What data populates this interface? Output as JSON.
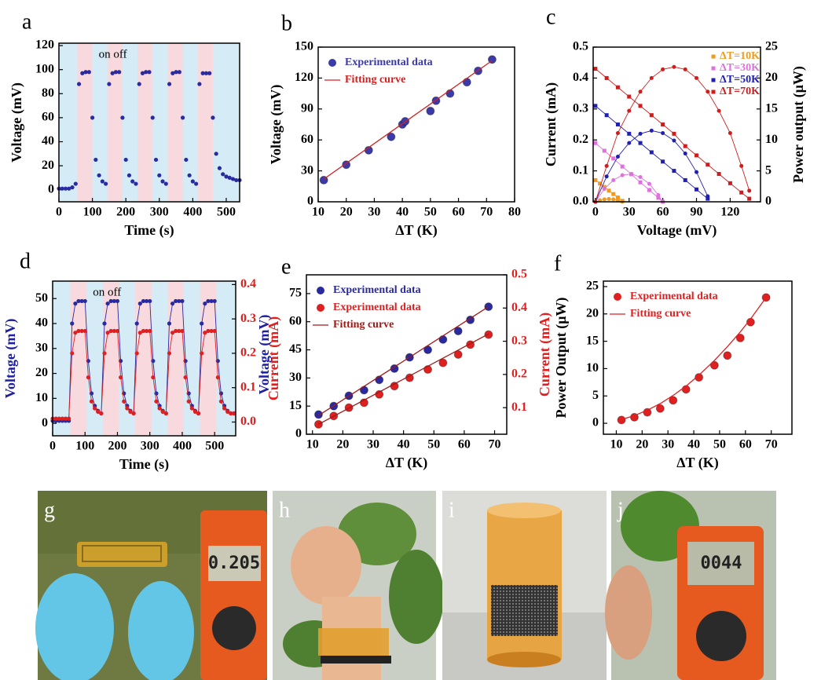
{
  "chart_data": [
    {
      "type": "scatter",
      "label": "a",
      "xlabel": "Time (s)",
      "ylabel": "Voltage (mV)",
      "annotation": "on off",
      "xlim": [
        0,
        540
      ],
      "xticks": [
        0,
        100,
        200,
        300,
        400,
        500
      ],
      "ylim": [
        -10,
        122
      ],
      "yticks": [
        0,
        20,
        40,
        60,
        80,
        100,
        120
      ],
      "band_colors": [
        "#d5ebf6",
        "#f8d9de"
      ],
      "on_periods": [
        [
          55,
          100
        ],
        [
          145,
          190
        ],
        [
          235,
          280
        ],
        [
          325,
          370
        ],
        [
          415,
          460
        ]
      ],
      "series": [
        {
          "color": "#2b2ba0",
          "marker": "circle",
          "size": 2.6,
          "line": false,
          "x": [
            0,
            10,
            20,
            30,
            40,
            50,
            60,
            70,
            80,
            90,
            100,
            110,
            120,
            130,
            140,
            150,
            160,
            170,
            180,
            190,
            200,
            210,
            220,
            230,
            240,
            250,
            260,
            270,
            280,
            290,
            300,
            310,
            320,
            330,
            340,
            350,
            360,
            370,
            380,
            390,
            400,
            410,
            420,
            430,
            440,
            450,
            460,
            470,
            480,
            490,
            500,
            510,
            520,
            530,
            540
          ],
          "values": [
            1,
            1,
            1,
            1,
            2,
            5,
            88,
            97,
            98,
            98,
            60,
            25,
            12,
            7,
            5,
            88,
            97,
            98,
            98,
            60,
            25,
            12,
            7,
            5,
            88,
            97,
            98,
            98,
            60,
            25,
            12,
            7,
            5,
            88,
            97,
            98,
            98,
            60,
            25,
            12,
            7,
            5,
            88,
            97,
            97,
            97,
            60,
            30,
            18,
            13,
            11,
            10,
            9,
            8,
            8
          ]
        }
      ]
    },
    {
      "type": "scatter",
      "label": "b",
      "xlabel": "ΔT (K)",
      "ylabel": "Voltage (mV)",
      "legend": "upper-left",
      "xlim": [
        10,
        80
      ],
      "xticks": [
        10,
        20,
        30,
        40,
        50,
        60,
        70,
        80
      ],
      "ylim": [
        0,
        150
      ],
      "yticks": [
        0,
        30,
        60,
        90,
        120,
        150
      ],
      "series": [
        {
          "name": "Experimental data",
          "color": "#3a3aa8",
          "marker": "circle",
          "size": 5,
          "line": false,
          "x": [
            12,
            20,
            28,
            36,
            40,
            41,
            50,
            52,
            57,
            63,
            67,
            72
          ],
          "values": [
            21,
            36,
            50,
            63,
            75,
            78,
            88,
            98,
            105,
            116,
            127,
            138
          ]
        },
        {
          "name": "Fitting curve",
          "color": "#d02020",
          "marker": "none",
          "line": true,
          "x": [
            12,
            72
          ],
          "values": [
            22,
            137
          ]
        }
      ]
    },
    {
      "type": "scatter",
      "label": "c",
      "xlabel": "Voltage (mV)",
      "ylabel": "Current (mA)",
      "y2label": "Power output (μW)",
      "legend": "upper-right",
      "xlim": [
        -2,
        147
      ],
      "xticks": [
        0,
        30,
        60,
        90,
        120
      ],
      "ylim": [
        0,
        0.5
      ],
      "yticks": [
        {
          "value": 0,
          "label": "0.0"
        },
        0.1,
        0.2,
        0.3,
        0.4,
        0.5
      ],
      "y2lim": [
        0,
        25
      ],
      "y2ticks": [
        0,
        5,
        10,
        15,
        20,
        25
      ],
      "series": [
        {
          "name": "ΔT=10K",
          "color": "#f09a20",
          "marker": "square",
          "size": 2.5,
          "line": true,
          "x": [
            0,
            4,
            8,
            12,
            16,
            20,
            24
          ],
          "values": [
            0.07,
            0.059,
            0.048,
            0.036,
            0.025,
            0.014,
            0.003
          ]
        },
        {
          "name": "ΔT=30K",
          "color": "#e070e0",
          "marker": "square",
          "size": 2.5,
          "line": true,
          "x": [
            0,
            8,
            16,
            24,
            32,
            40,
            48,
            56,
            60
          ],
          "values": [
            0.19,
            0.165,
            0.14,
            0.114,
            0.089,
            0.063,
            0.038,
            0.013,
            0
          ]
        },
        {
          "name": "ΔT=50K",
          "color": "#2020b0",
          "marker": "square",
          "size": 2.5,
          "line": true,
          "x": [
            0,
            10,
            20,
            30,
            40,
            50,
            60,
            70,
            80,
            90,
            100
          ],
          "values": [
            0.31,
            0.28,
            0.25,
            0.22,
            0.19,
            0.16,
            0.13,
            0.1,
            0.07,
            0.04,
            0.01
          ]
        },
        {
          "name": "ΔT=70K",
          "color": "#d01c1c",
          "marker": "square",
          "size": 2.5,
          "line": true,
          "x": [
            0,
            10,
            20,
            30,
            40,
            50,
            60,
            70,
            80,
            90,
            100,
            110,
            120,
            130,
            137
          ],
          "values": [
            0.43,
            0.4,
            0.37,
            0.34,
            0.31,
            0.28,
            0.25,
            0.22,
            0.18,
            0.15,
            0.12,
            0.09,
            0.06,
            0.03,
            0.01
          ]
        },
        {
          "color": "#f09a20",
          "marker": "circle",
          "size": 2.5,
          "line": true,
          "axis": "y2",
          "x": [
            0,
            4,
            8,
            12,
            16,
            20,
            24
          ],
          "values": [
            0,
            0.25,
            0.4,
            0.45,
            0.4,
            0.25,
            0
          ]
        },
        {
          "color": "#e070e0",
          "marker": "circle",
          "size": 2.5,
          "line": true,
          "axis": "y2",
          "x": [
            0,
            8,
            16,
            24,
            32,
            40,
            48,
            56,
            60
          ],
          "values": [
            0,
            2.1,
            3.5,
            4.3,
            4.5,
            4.0,
            2.9,
            1.1,
            0
          ]
        },
        {
          "color": "#2020b0",
          "marker": "circle",
          "size": 2.5,
          "line": true,
          "axis": "y2",
          "x": [
            0,
            10,
            20,
            30,
            40,
            50,
            60,
            70,
            80,
            90,
            100
          ],
          "values": [
            0,
            4.1,
            7.3,
            9.5,
            11,
            11.5,
            11.1,
            9.9,
            7.8,
            4.8,
            0.9
          ]
        },
        {
          "color": "#d01c1c",
          "marker": "circle",
          "size": 2.5,
          "line": true,
          "axis": "y2",
          "x": [
            0,
            10,
            20,
            30,
            40,
            50,
            60,
            70,
            80,
            90,
            100,
            110,
            120,
            130,
            137
          ],
          "values": [
            0,
            5.8,
            11.1,
            14.7,
            17.8,
            20,
            21.4,
            21.8,
            21.4,
            20,
            17.8,
            14.7,
            11.1,
            5.8,
            1.8
          ]
        }
      ]
    },
    {
      "type": "scatter",
      "label": "d",
      "xlabel": "Time (s)",
      "ylabel": "Voltage (mV)",
      "y2label": "Current (mA)",
      "annotation": "on off",
      "ylabel_color": "#1e1ea0",
      "y2label_color": "#e02020",
      "xlim": [
        0,
        565
      ],
      "xticks": [
        0,
        100,
        200,
        300,
        400,
        500
      ],
      "ylim": [
        -5,
        57
      ],
      "yticks": [
        0,
        10,
        20,
        30,
        40,
        50
      ],
      "y2lim": [
        -0.04,
        0.41
      ],
      "y2ticks": [
        {
          "value": 0,
          "label": "0.0"
        },
        0.1,
        0.2,
        0.3,
        0.4
      ],
      "band_colors": [
        "#d5ebf6",
        "#f8d9de"
      ],
      "on_periods": [
        [
          55,
          105
        ],
        [
          155,
          205
        ],
        [
          255,
          305
        ],
        [
          355,
          405
        ],
        [
          455,
          505
        ]
      ],
      "series": [
        {
          "color": "#2a2aa0",
          "marker": "circle",
          "size": 2.6,
          "line": true,
          "x": [
            0,
            10,
            20,
            30,
            40,
            50,
            60,
            70,
            80,
            90,
            100,
            110,
            120,
            130,
            140,
            150,
            160,
            170,
            180,
            190,
            200,
            210,
            220,
            230,
            240,
            250,
            260,
            270,
            280,
            290,
            300,
            310,
            320,
            330,
            340,
            350,
            360,
            370,
            380,
            390,
            400,
            410,
            420,
            430,
            440,
            450,
            460,
            470,
            480,
            490,
            500,
            510,
            520,
            530,
            540,
            550,
            560
          ],
          "values": [
            1,
            1,
            1,
            1,
            1,
            1,
            40,
            48,
            49,
            49,
            49,
            25,
            12,
            7,
            5,
            4,
            40,
            48,
            49,
            49,
            49,
            25,
            12,
            7,
            5,
            4,
            40,
            48,
            49,
            49,
            49,
            25,
            12,
            7,
            5,
            4,
            40,
            48,
            49,
            49,
            49,
            25,
            12,
            7,
            5,
            4,
            40,
            48,
            49,
            49,
            49,
            25,
            12,
            7,
            5,
            4,
            4
          ]
        },
        {
          "color": "#e02020",
          "marker": "circle",
          "size": 2.6,
          "line": true,
          "axis": "y2",
          "x": [
            0,
            10,
            20,
            30,
            40,
            50,
            60,
            70,
            80,
            90,
            100,
            110,
            120,
            130,
            140,
            150,
            160,
            170,
            180,
            190,
            200,
            210,
            220,
            230,
            240,
            250,
            260,
            270,
            280,
            290,
            300,
            310,
            320,
            330,
            340,
            350,
            360,
            370,
            380,
            390,
            400,
            410,
            420,
            430,
            440,
            450,
            460,
            470,
            480,
            490,
            500,
            510,
            520,
            530,
            540,
            550,
            560
          ],
          "values": [
            0.01,
            0.01,
            0.01,
            0.01,
            0.01,
            0.01,
            0.2,
            0.26,
            0.265,
            0.265,
            0.265,
            0.13,
            0.06,
            0.04,
            0.03,
            0.025,
            0.2,
            0.26,
            0.265,
            0.265,
            0.265,
            0.13,
            0.06,
            0.04,
            0.03,
            0.025,
            0.2,
            0.26,
            0.265,
            0.265,
            0.265,
            0.13,
            0.06,
            0.04,
            0.03,
            0.025,
            0.2,
            0.26,
            0.265,
            0.265,
            0.265,
            0.13,
            0.06,
            0.04,
            0.03,
            0.025,
            0.2,
            0.26,
            0.265,
            0.265,
            0.265,
            0.13,
            0.06,
            0.04,
            0.03,
            0.025,
            0.025
          ]
        }
      ]
    },
    {
      "type": "scatter",
      "label": "e",
      "xlabel": "ΔT (K)",
      "ylabel": "Voltage (mV)",
      "y2label": "Current (mA)",
      "legend": "upper-left",
      "ylabel_color": "#1e1ea0",
      "y2label_color": "#e02020",
      "xlim": [
        8,
        74
      ],
      "xticks": [
        10,
        20,
        30,
        40,
        50,
        60,
        70
      ],
      "ylim": [
        0,
        85
      ],
      "yticks": [
        0,
        15,
        30,
        45,
        60,
        75
      ],
      "y2lim": [
        0.02,
        0.5
      ],
      "y2ticks": [
        0.1,
        0.2,
        0.3,
        0.4,
        0.5
      ],
      "series": [
        {
          "name": "Experimental data",
          "color": "#2a2aa0",
          "marker": "circle",
          "size": 5,
          "line": false,
          "x": [
            12,
            17,
            22,
            27,
            32,
            37,
            42,
            48,
            53,
            58,
            62,
            68
          ],
          "values": [
            10.5,
            15,
            20.5,
            23.5,
            29,
            35,
            41,
            45,
            50.5,
            55,
            61,
            68
          ]
        },
        {
          "name": "Experimental data",
          "color": "#e02020",
          "marker": "circle",
          "size": 5,
          "line": false,
          "axis": "y2",
          "x": [
            12,
            17,
            22,
            27,
            32,
            37,
            42,
            48,
            53,
            58,
            62,
            68
          ],
          "values": [
            0.05,
            0.075,
            0.1,
            0.115,
            0.14,
            0.165,
            0.19,
            0.215,
            0.235,
            0.26,
            0.29,
            0.32
          ]
        },
        {
          "name": "Fitting curve",
          "color": "#a01818",
          "marker": "none",
          "line": true,
          "x": [
            12,
            68
          ],
          "values": [
            10,
            68
          ]
        },
        {
          "color": "#a01818",
          "marker": "none",
          "line": true,
          "axis": "y2",
          "x": [
            12,
            68
          ],
          "values": [
            0.05,
            0.322
          ]
        }
      ]
    },
    {
      "type": "scatter",
      "label": "f",
      "xlabel": "ΔT (K)",
      "ylabel": "Power Output (μW)",
      "legend": "upper-left",
      "xlim": [
        5,
        78
      ],
      "xticks": [
        10,
        20,
        30,
        40,
        50,
        60,
        70
      ],
      "ylim": [
        -2,
        26
      ],
      "yticks": [
        0,
        5,
        10,
        15,
        20,
        25
      ],
      "series": [
        {
          "name": "Experimental data",
          "color": "#e02020",
          "marker": "circle",
          "size": 5,
          "line": false,
          "x": [
            12,
            17,
            22,
            27,
            32,
            37,
            42,
            48,
            53,
            58,
            62,
            68
          ],
          "values": [
            0.6,
            1.1,
            2,
            2.7,
            4.2,
            6.2,
            8.4,
            10.6,
            12.4,
            15.6,
            18.5,
            23
          ]
        },
        {
          "name": "Fitting curve",
          "color": "#e02020",
          "marker": "none",
          "line": true,
          "x": [
            12,
            17,
            22,
            27,
            32,
            37,
            42,
            48,
            53,
            58,
            62,
            68
          ],
          "values": [
            0.7,
            1.4,
            2.4,
            3.6,
            5.1,
            6.8,
            8.8,
            11.5,
            14,
            16.7,
            19.1,
            23
          ]
        }
      ]
    }
  ],
  "photos": [
    {
      "label": "g",
      "display": "0.205"
    },
    {
      "label": "h"
    },
    {
      "label": "i"
    },
    {
      "label": "j",
      "display": "0044"
    }
  ]
}
